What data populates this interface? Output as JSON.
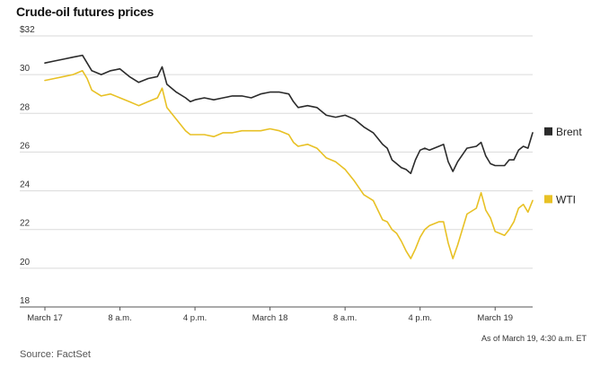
{
  "chart_data": {
    "type": "line",
    "title": "Crude-oil futures prices",
    "xlabel": "",
    "ylabel": "",
    "ylim": [
      18,
      32
    ],
    "y_ticks": [
      "$32",
      "30",
      "28",
      "26",
      "24",
      "22",
      "20",
      "18"
    ],
    "y_tick_values": [
      32,
      30,
      28,
      26,
      24,
      22,
      20,
      18
    ],
    "x_range": [
      0,
      52
    ],
    "x_ticks": [
      {
        "x": 0,
        "label": "March 17"
      },
      {
        "x": 8,
        "label": "8 a.m."
      },
      {
        "x": 16,
        "label": "4 p.m."
      },
      {
        "x": 24,
        "label": "March 18"
      },
      {
        "x": 32,
        "label": "8 a.m."
      },
      {
        "x": 40,
        "label": "4 p.m."
      },
      {
        "x": 48,
        "label": "March 19"
      }
    ],
    "grid": true,
    "legend": "right, at series ends",
    "series": [
      {
        "name": "Brent",
        "color": "#2b2b2b",
        "points": [
          [
            0,
            30.6
          ],
          [
            1,
            30.7
          ],
          [
            2,
            30.8
          ],
          [
            3,
            30.9
          ],
          [
            4,
            31.0
          ],
          [
            4.5,
            30.6
          ],
          [
            5,
            30.2
          ],
          [
            6,
            30.0
          ],
          [
            7,
            30.2
          ],
          [
            8,
            30.3
          ],
          [
            9,
            29.9
          ],
          [
            10,
            29.6
          ],
          [
            11,
            29.8
          ],
          [
            12,
            29.9
          ],
          [
            12.5,
            30.4
          ],
          [
            13,
            29.5
          ],
          [
            14,
            29.1
          ],
          [
            15,
            28.8
          ],
          [
            15.5,
            28.6
          ],
          [
            16,
            28.7
          ],
          [
            17,
            28.8
          ],
          [
            18,
            28.7
          ],
          [
            19,
            28.8
          ],
          [
            20,
            28.9
          ],
          [
            21,
            28.9
          ],
          [
            22,
            28.8
          ],
          [
            23,
            29.0
          ],
          [
            24,
            29.1
          ],
          [
            25,
            29.1
          ],
          [
            26,
            29.0
          ],
          [
            26.5,
            28.6
          ],
          [
            27,
            28.3
          ],
          [
            28,
            28.4
          ],
          [
            29,
            28.3
          ],
          [
            30,
            27.9
          ],
          [
            31,
            27.8
          ],
          [
            32,
            27.9
          ],
          [
            33,
            27.7
          ],
          [
            34,
            27.3
          ],
          [
            35,
            27.0
          ],
          [
            35.5,
            26.7
          ],
          [
            36,
            26.4
          ],
          [
            36.5,
            26.2
          ],
          [
            37,
            25.6
          ],
          [
            37.5,
            25.4
          ],
          [
            38,
            25.2
          ],
          [
            38.5,
            25.1
          ],
          [
            39,
            24.9
          ],
          [
            39.5,
            25.6
          ],
          [
            40,
            26.1
          ],
          [
            40.5,
            26.2
          ],
          [
            41,
            26.1
          ],
          [
            42,
            26.3
          ],
          [
            42.5,
            26.4
          ],
          [
            43,
            25.5
          ],
          [
            43.5,
            25.0
          ],
          [
            44,
            25.5
          ],
          [
            45,
            26.2
          ],
          [
            46,
            26.3
          ],
          [
            46.5,
            26.5
          ],
          [
            47,
            25.8
          ],
          [
            47.5,
            25.4
          ],
          [
            48,
            25.3
          ],
          [
            49,
            25.3
          ],
          [
            49.5,
            25.6
          ],
          [
            50,
            25.6
          ],
          [
            50.5,
            26.1
          ],
          [
            51,
            26.3
          ],
          [
            51.5,
            26.2
          ],
          [
            52,
            27.0
          ]
        ]
      },
      {
        "name": "WTI",
        "color": "#e8c125",
        "points": [
          [
            0,
            29.7
          ],
          [
            1,
            29.8
          ],
          [
            2,
            29.9
          ],
          [
            3,
            30.0
          ],
          [
            4,
            30.2
          ],
          [
            4.5,
            29.8
          ],
          [
            5,
            29.2
          ],
          [
            6,
            28.9
          ],
          [
            7,
            29.0
          ],
          [
            8,
            28.8
          ],
          [
            9,
            28.6
          ],
          [
            10,
            28.4
          ],
          [
            11,
            28.6
          ],
          [
            12,
            28.8
          ],
          [
            12.5,
            29.3
          ],
          [
            13,
            28.3
          ],
          [
            14,
            27.7
          ],
          [
            15,
            27.1
          ],
          [
            15.5,
            26.9
          ],
          [
            16,
            26.9
          ],
          [
            17,
            26.9
          ],
          [
            18,
            26.8
          ],
          [
            19,
            27.0
          ],
          [
            20,
            27.0
          ],
          [
            21,
            27.1
          ],
          [
            22,
            27.1
          ],
          [
            23,
            27.1
          ],
          [
            24,
            27.2
          ],
          [
            25,
            27.1
          ],
          [
            26,
            26.9
          ],
          [
            26.5,
            26.5
          ],
          [
            27,
            26.3
          ],
          [
            28,
            26.4
          ],
          [
            29,
            26.2
          ],
          [
            30,
            25.7
          ],
          [
            31,
            25.5
          ],
          [
            32,
            25.1
          ],
          [
            33,
            24.5
          ],
          [
            34,
            23.8
          ],
          [
            35,
            23.5
          ],
          [
            35.5,
            23.0
          ],
          [
            36,
            22.5
          ],
          [
            36.5,
            22.4
          ],
          [
            37,
            22.0
          ],
          [
            37.5,
            21.8
          ],
          [
            38,
            21.4
          ],
          [
            38.5,
            20.9
          ],
          [
            39,
            20.5
          ],
          [
            39.5,
            21.0
          ],
          [
            40,
            21.6
          ],
          [
            40.5,
            22.0
          ],
          [
            41,
            22.2
          ],
          [
            42,
            22.4
          ],
          [
            42.5,
            22.4
          ],
          [
            43,
            21.3
          ],
          [
            43.5,
            20.5
          ],
          [
            44,
            21.2
          ],
          [
            45,
            22.8
          ],
          [
            46,
            23.1
          ],
          [
            46.5,
            23.9
          ],
          [
            47,
            23.0
          ],
          [
            47.5,
            22.6
          ],
          [
            48,
            21.9
          ],
          [
            49,
            21.7
          ],
          [
            49.5,
            22.0
          ],
          [
            50,
            22.4
          ],
          [
            50.5,
            23.1
          ],
          [
            51,
            23.3
          ],
          [
            51.5,
            22.9
          ],
          [
            52,
            23.5
          ]
        ]
      }
    ]
  },
  "footnote": "As of March 19, 4:30 a.m. ET",
  "source": "Source: FactSet"
}
